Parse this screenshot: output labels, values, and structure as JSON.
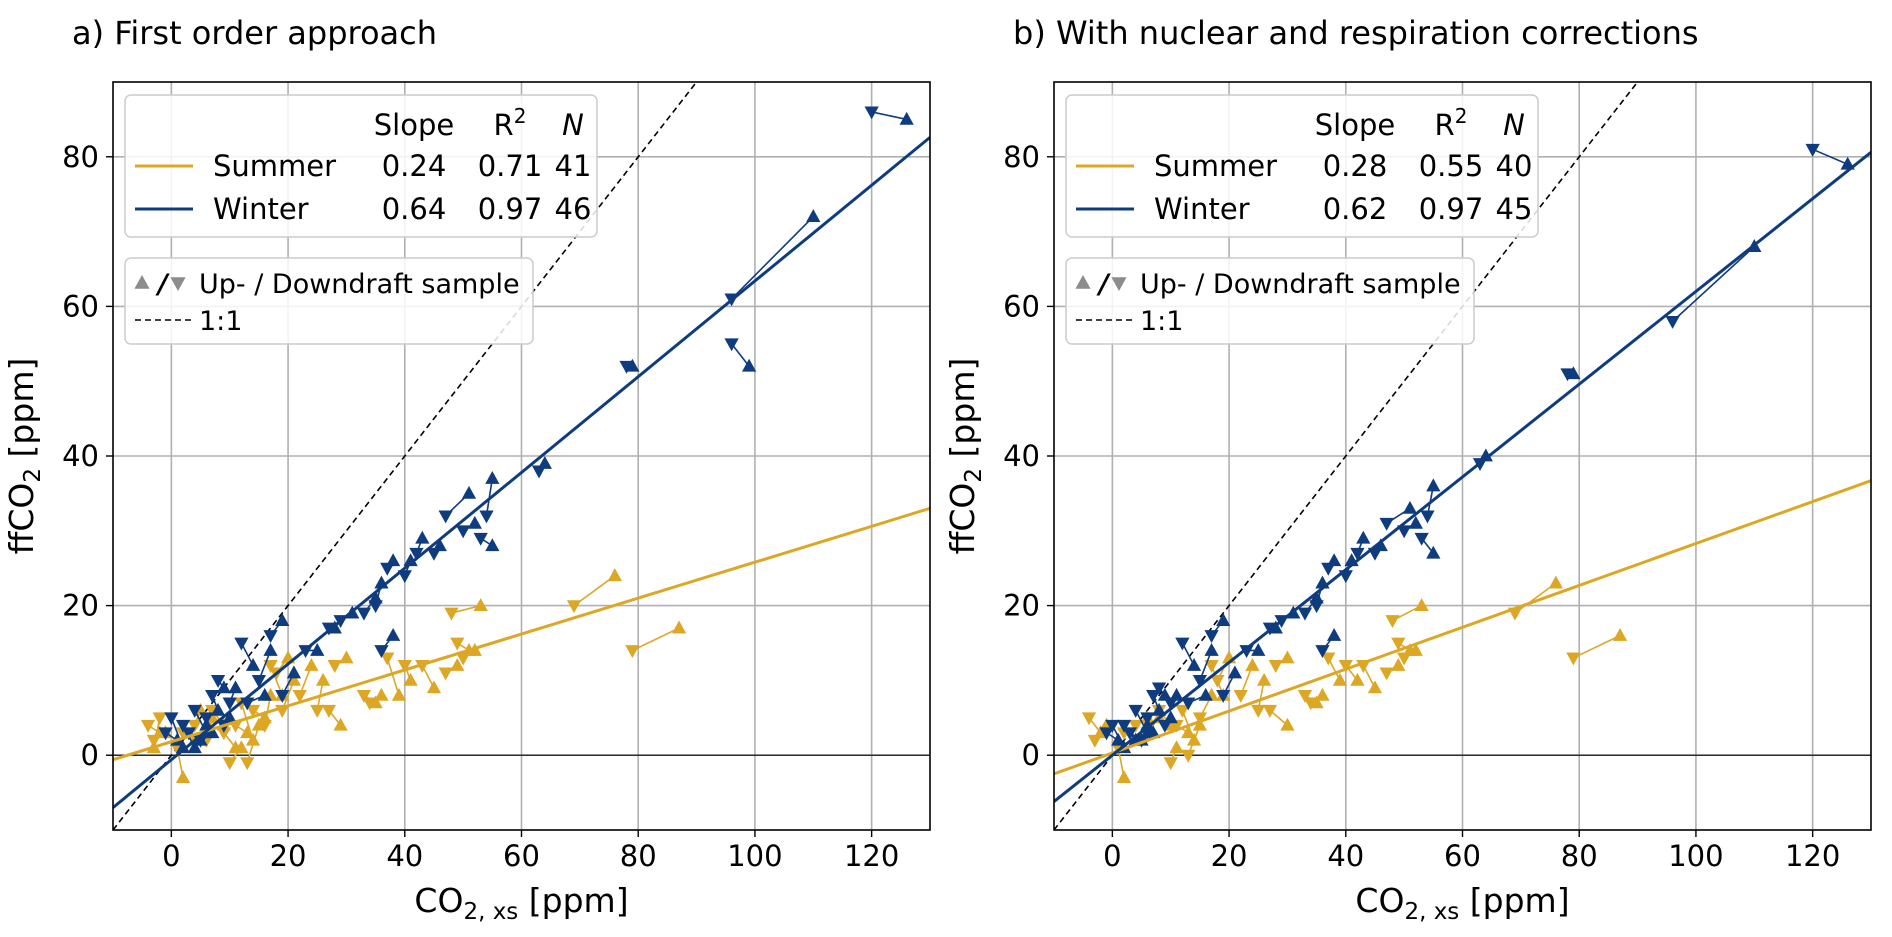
{
  "colors": {
    "summer": "#DDA726",
    "winter": "#0F3C7E",
    "grid": "#b0b0b0",
    "marker_legend": "#8c8c8c"
  },
  "chart_data": [
    {
      "type": "scatter",
      "title": "a) First order approach",
      "xlabel_main": "CO",
      "xlabel_sub": "2, xs",
      "xlabel_unit": " [ppm]",
      "ylabel_main": "ffCO",
      "ylabel_sub": "2",
      "ylabel_unit": " [ppm]",
      "xlim": [
        -10,
        130
      ],
      "ylim": [
        -10,
        90
      ],
      "xticks": [
        0,
        20,
        40,
        60,
        80,
        100,
        120
      ],
      "yticks": [
        0,
        20,
        40,
        60,
        80
      ],
      "grid": true,
      "legend_header": {
        "slope": "Slope",
        "r2": "R",
        "r2_sup": "2",
        "n": "N"
      },
      "legend_rows": [
        {
          "name": "Summer",
          "slope": "0.24",
          "r2": "0.71",
          "n": "41",
          "color_key": "summer"
        },
        {
          "name": "Winter",
          "slope": "0.64",
          "r2": "0.97",
          "n": "46",
          "color_key": "winter"
        }
      ],
      "legend2": {
        "sample_label": "Up- / Downdraft sample",
        "sep": "/",
        "ref_label": "1:1"
      },
      "series": [
        {
          "name": "Summer",
          "fit": {
            "slope": 0.24,
            "intercept": 1.8
          },
          "pairs": [
            [
              -4,
              4,
              -2,
              3
            ],
            [
              -3,
              2,
              -1,
              3
            ],
            [
              -2,
              5,
              -3,
              1
            ],
            [
              1,
              1,
              2,
              -3
            ],
            [
              2,
              3,
              4,
              2
            ],
            [
              4,
              4,
              5,
              6
            ],
            [
              6,
              2,
              7,
              5
            ],
            [
              7,
              6,
              9,
              4
            ],
            [
              9,
              3,
              11,
              1
            ],
            [
              10,
              -1,
              12,
              1
            ],
            [
              11,
              4,
              13,
              3
            ],
            [
              12,
              7,
              14,
              2
            ],
            [
              13,
              -1,
              15,
              4
            ],
            [
              14,
              6,
              16,
              5
            ],
            [
              16,
              4,
              17,
              8
            ],
            [
              17,
              12,
              19,
              8
            ],
            [
              18,
              11,
              20,
              13
            ],
            [
              19,
              6,
              21,
              10
            ],
            [
              22,
              8,
              24,
              12
            ],
            [
              25,
              6,
              26,
              10
            ],
            [
              27,
              6,
              29,
              4
            ],
            [
              28,
              12,
              30,
              13
            ],
            [
              33,
              8,
              35,
              7
            ],
            [
              34,
              7,
              36,
              8
            ],
            [
              37,
              13,
              39,
              8
            ],
            [
              40,
              12,
              41,
              10
            ],
            [
              43,
              12,
              45,
              9
            ],
            [
              47,
              11,
              49,
              12
            ],
            [
              49,
              15,
              51,
              14
            ],
            [
              50,
              13,
              52,
              14
            ],
            [
              48,
              19,
              53,
              20
            ],
            [
              69,
              20,
              76,
              24
            ],
            [
              79,
              14,
              87,
              17
            ]
          ]
        },
        {
          "name": "Winter",
          "fit": {
            "slope": 0.64,
            "intercept": -0.6
          },
          "pairs": [
            [
              -1,
              3,
              1,
              2
            ],
            [
              0,
              5,
              2,
              1
            ],
            [
              2,
              4,
              4,
              1
            ],
            [
              3,
              3,
              5,
              2
            ],
            [
              4,
              6,
              6,
              3
            ],
            [
              5,
              2,
              6,
              4
            ],
            [
              6,
              5,
              7,
              3
            ],
            [
              7,
              8,
              8,
              6
            ],
            [
              8,
              10,
              9,
              9
            ],
            [
              9,
              4,
              10,
              5
            ],
            [
              10,
              7,
              11,
              9
            ],
            [
              12,
              15,
              14,
              12
            ],
            [
              13,
              7,
              16,
              8
            ],
            [
              15,
              10,
              17,
              14
            ],
            [
              17,
              16,
              19,
              18
            ],
            [
              19,
              8,
              21,
              11
            ],
            [
              23,
              14,
              25,
              14
            ],
            [
              27,
              17,
              28,
              17
            ],
            [
              29,
              18,
              31,
              19
            ],
            [
              33,
              19,
              35,
              21
            ],
            [
              35,
              20,
              36,
              23
            ],
            [
              36,
              14,
              38,
              16
            ],
            [
              37,
              25,
              38,
              26
            ],
            [
              40,
              24,
              41,
              26
            ],
            [
              42,
              27,
              43,
              29
            ],
            [
              45,
              27,
              46,
              28
            ],
            [
              47,
              32,
              51,
              35
            ],
            [
              50,
              30,
              52,
              31
            ],
            [
              53,
              29,
              55,
              28
            ],
            [
              54,
              32,
              55,
              37
            ],
            [
              63,
              38,
              64,
              39
            ],
            [
              78,
              52,
              79,
              52
            ],
            [
              96,
              61,
              110,
              72
            ],
            [
              96,
              55,
              99,
              52
            ],
            [
              120,
              86,
              126,
              85
            ]
          ]
        }
      ]
    },
    {
      "type": "scatter",
      "title": "b) With nuclear and respiration corrections",
      "xlabel_main": "CO",
      "xlabel_sub": "2, xs",
      "xlabel_unit": " [ppm]",
      "ylabel_main": "ffCO",
      "ylabel_sub": "2",
      "ylabel_unit": " [ppm]",
      "xlim": [
        -10,
        130
      ],
      "ylim": [
        -10,
        90
      ],
      "xticks": [
        0,
        20,
        40,
        60,
        80,
        100,
        120
      ],
      "yticks": [
        0,
        20,
        40,
        60,
        80
      ],
      "grid": true,
      "legend_header": {
        "slope": "Slope",
        "r2": "R",
        "r2_sup": "2",
        "n": "N"
      },
      "legend_rows": [
        {
          "name": "Summer",
          "slope": "0.28",
          "r2": "0.55",
          "n": "40",
          "color_key": "summer"
        },
        {
          "name": "Winter",
          "slope": "0.62",
          "r2": "0.97",
          "n": "45",
          "color_key": "winter"
        }
      ],
      "legend2": {
        "sample_label": "Up- / Downdraft sample",
        "sep": "/",
        "ref_label": "1:1"
      },
      "series": [
        {
          "name": "Summer",
          "fit": {
            "slope": 0.28,
            "intercept": 0.3
          },
          "pairs": [
            [
              -4,
              5,
              -2,
              3
            ],
            [
              -3,
              2,
              -1,
              4
            ],
            [
              1,
              1,
              2,
              -3
            ],
            [
              2,
              3,
              4,
              2
            ],
            [
              4,
              4,
              6,
              5
            ],
            [
              6,
              3,
              8,
              5
            ],
            [
              8,
              6,
              10,
              4
            ],
            [
              10,
              -1,
              11,
              1
            ],
            [
              11,
              4,
              13,
              3
            ],
            [
              12,
              6,
              14,
              2
            ],
            [
              13,
              0,
              15,
              4
            ],
            [
              15,
              5,
              17,
              8
            ],
            [
              17,
              12,
              19,
              8
            ],
            [
              18,
              10,
              20,
              13
            ],
            [
              22,
              8,
              24,
              12
            ],
            [
              25,
              6,
              26,
              10
            ],
            [
              27,
              6,
              30,
              4
            ],
            [
              28,
              12,
              30,
              13
            ],
            [
              33,
              8,
              35,
              7
            ],
            [
              34,
              7,
              36,
              8
            ],
            [
              37,
              13,
              39,
              10
            ],
            [
              40,
              12,
              42,
              10
            ],
            [
              43,
              12,
              45,
              9
            ],
            [
              47,
              11,
              49,
              12
            ],
            [
              49,
              15,
              51,
              14
            ],
            [
              50,
              13,
              52,
              14
            ],
            [
              48,
              18,
              53,
              20
            ],
            [
              69,
              19,
              76,
              23
            ],
            [
              79,
              13,
              87,
              16
            ]
          ]
        },
        {
          "name": "Winter",
          "fit": {
            "slope": 0.62,
            "intercept": 0.0
          },
          "pairs": [
            [
              -1,
              3,
              1,
              2
            ],
            [
              0,
              4,
              2,
              1
            ],
            [
              2,
              4,
              4,
              2
            ],
            [
              3,
              3,
              5,
              2
            ],
            [
              4,
              6,
              6,
              3
            ],
            [
              5,
              2,
              6,
              4
            ],
            [
              6,
              5,
              7,
              3
            ],
            [
              7,
              8,
              8,
              6
            ],
            [
              8,
              9,
              9,
              8
            ],
            [
              9,
              4,
              10,
              5
            ],
            [
              10,
              7,
              11,
              8
            ],
            [
              12,
              15,
              14,
              12
            ],
            [
              13,
              7,
              16,
              8
            ],
            [
              15,
              10,
              17,
              14
            ],
            [
              17,
              16,
              19,
              18
            ],
            [
              19,
              8,
              21,
              11
            ],
            [
              23,
              14,
              25,
              14
            ],
            [
              27,
              17,
              28,
              17
            ],
            [
              29,
              18,
              31,
              19
            ],
            [
              33,
              19,
              35,
              21
            ],
            [
              35,
              20,
              36,
              23
            ],
            [
              36,
              14,
              38,
              16
            ],
            [
              37,
              25,
              38,
              26
            ],
            [
              40,
              24,
              41,
              26
            ],
            [
              42,
              27,
              43,
              29
            ],
            [
              45,
              27,
              46,
              28
            ],
            [
              47,
              31,
              51,
              33
            ],
            [
              50,
              30,
              52,
              31
            ],
            [
              53,
              29,
              55,
              27
            ],
            [
              54,
              32,
              55,
              36
            ],
            [
              63,
              39,
              64,
              40
            ],
            [
              78,
              51,
              79,
              51
            ],
            [
              96,
              58,
              110,
              68
            ],
            [
              120,
              81,
              126,
              79
            ]
          ]
        }
      ]
    }
  ]
}
